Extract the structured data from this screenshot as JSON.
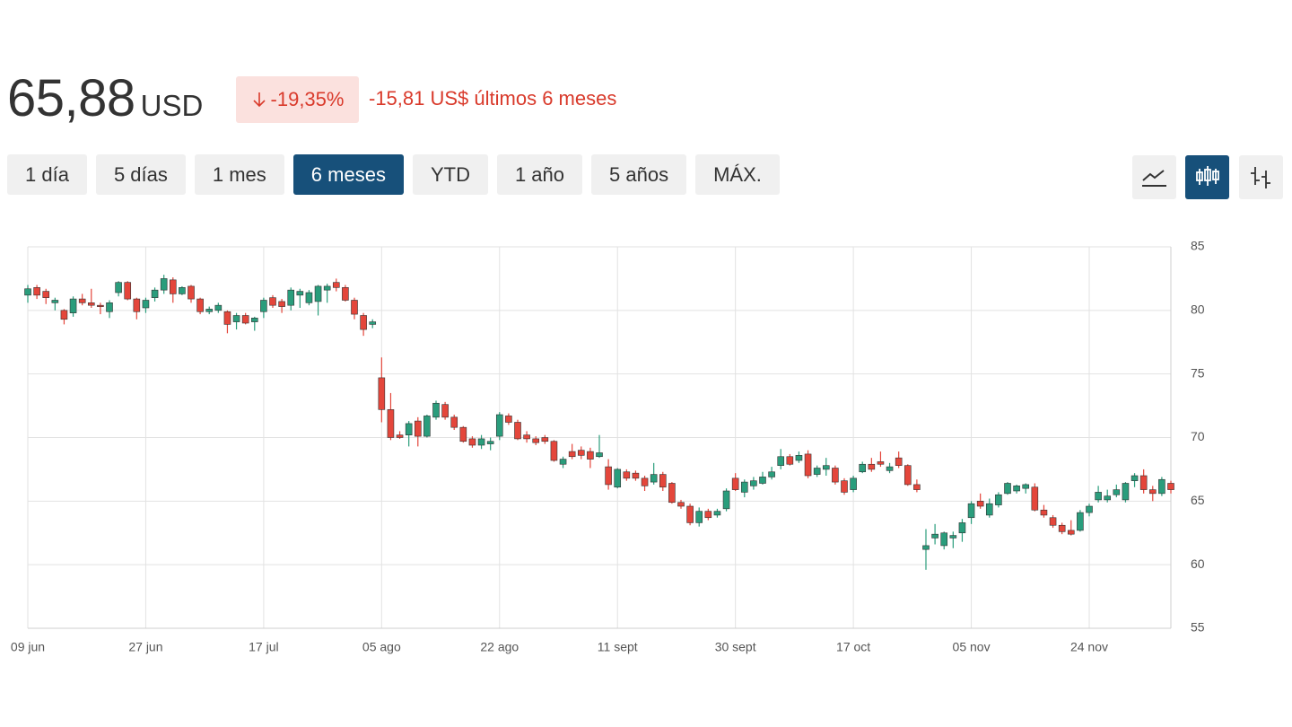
{
  "header": {
    "price": "65,88",
    "currency": "USD",
    "change_pct": "-19,35%",
    "change_text": "-15,81 US$ últimos 6 meses"
  },
  "ranges": [
    {
      "label": "1 día",
      "selected": false
    },
    {
      "label": "5 días",
      "selected": false
    },
    {
      "label": "1 mes",
      "selected": false
    },
    {
      "label": "6 meses",
      "selected": true
    },
    {
      "label": "YTD",
      "selected": false
    },
    {
      "label": "1 año",
      "selected": false
    },
    {
      "label": "5 años",
      "selected": false
    },
    {
      "label": "MÁX.",
      "selected": false
    }
  ],
  "chart_data": {
    "type": "candlestick",
    "categories": [
      "09 jun",
      null,
      null,
      null,
      null,
      null,
      null,
      null,
      null,
      null,
      null,
      null,
      null,
      "27 jun",
      null,
      null,
      null,
      null,
      null,
      null,
      null,
      null,
      null,
      null,
      null,
      null,
      "17 jul",
      null,
      null,
      null,
      null,
      null,
      null,
      null,
      null,
      null,
      null,
      null,
      null,
      "05 ago",
      null,
      null,
      null,
      null,
      null,
      null,
      null,
      null,
      null,
      null,
      null,
      null,
      "22 ago",
      null,
      null,
      null,
      null,
      null,
      null,
      null,
      null,
      null,
      null,
      null,
      null,
      "11 sept",
      null,
      null,
      null,
      null,
      null,
      null,
      null,
      null,
      null,
      null,
      null,
      null,
      "30 sept",
      null,
      null,
      null,
      null,
      null,
      null,
      null,
      null,
      null,
      null,
      null,
      null,
      "17 oct",
      null,
      null,
      null,
      null,
      null,
      null,
      null,
      null,
      null,
      null,
      null,
      null,
      "05 nov",
      null,
      null,
      null,
      null,
      null,
      null,
      null,
      null,
      null,
      null,
      null,
      null,
      "24 nov",
      null,
      null,
      null,
      null,
      null,
      null,
      null,
      null,
      null
    ],
    "open": [
      81.2,
      81.8,
      81.5,
      80.6,
      80,
      79.8,
      80.9,
      80.6,
      80.4,
      79.9,
      81.4,
      82.2,
      80.9,
      80.2,
      81,
      81.6,
      82.4,
      81.3,
      81.9,
      80.9,
      79.9,
      80,
      79.9,
      79.1,
      79.6,
      79.1,
      79.9,
      81,
      80.7,
      80.4,
      81.2,
      80.6,
      80.7,
      81.6,
      82.2,
      81.8,
      80.8,
      79.6,
      78.9,
      74.7,
      72.2,
      70.2,
      70.2,
      71.3,
      70.1,
      71.6,
      72.6,
      71.6,
      70.8,
      69.9,
      69.4,
      69.5,
      70.1,
      71.7,
      71.2,
      70.2,
      69.9,
      70,
      69.7,
      67.9,
      68.9,
      69,
      68.9,
      68.5,
      67.7,
      66.1,
      67.3,
      67.2,
      66.8,
      66.5,
      67.1,
      66.4,
      64.9,
      64.6,
      63.3,
      64.2,
      63.9,
      64.4,
      66.8,
      65.7,
      66.2,
      66.4,
      66.9,
      67.8,
      68.5,
      68.2,
      68.7,
      67.1,
      67.5,
      67.6,
      66.6,
      65.9,
      67.3,
      67.9,
      68.1,
      67.4,
      68.4,
      67.8,
      66.3,
      61.2,
      62.1,
      61.5,
      62.1,
      62.5,
      63.7,
      65,
      63.9,
      64.7,
      65.6,
      65.8,
      66,
      66.1,
      64.3,
      63.7,
      63.1,
      62.7,
      62.7,
      64.1,
      65.1,
      65.1,
      65.5,
      65.1,
      66.6,
      67,
      65.9,
      65.6,
      66.4
    ],
    "high": [
      82,
      82,
      81.7,
      81,
      80.1,
      81.1,
      81.3,
      81.7,
      80.6,
      80.8,
      82.3,
      82.3,
      81,
      81,
      81.8,
      82.8,
      82.6,
      81.9,
      82,
      81,
      80.3,
      80.6,
      80,
      79.8,
      79.8,
      79.5,
      81,
      81.2,
      80.9,
      81.8,
      81.7,
      81.6,
      82,
      82.1,
      82.5,
      82,
      81,
      79.8,
      79.3,
      76.3,
      73.5,
      70.5,
      71.3,
      71.6,
      71.8,
      72.9,
      72.8,
      71.8,
      70.9,
      70.1,
      70.2,
      70,
      72,
      71.9,
      71.4,
      70.5,
      70.1,
      70.2,
      69.8,
      68.5,
      69.5,
      69.3,
      69.2,
      70.2,
      68.3,
      67.6,
      67.5,
      67.4,
      67,
      68,
      67.3,
      66.5,
      65.1,
      64.8,
      64.5,
      64.4,
      64.4,
      66,
      67.2,
      66.7,
      66.9,
      67.3,
      67.7,
      69.1,
      68.7,
      68.9,
      69,
      67.8,
      68.4,
      67.8,
      66.8,
      67,
      68.1,
      68.4,
      68.9,
      68,
      68.9,
      67.9,
      66.7,
      62.8,
      63.2,
      62.6,
      62.6,
      63.6,
      65,
      65.6,
      65.2,
      65.7,
      66.5,
      66.3,
      66.4,
      66.4,
      64.7,
      63.9,
      63.3,
      63.5,
      64.3,
      64.8,
      66.2,
      65.9,
      66.3,
      66.5,
      67.2,
      67.5,
      66.2,
      66.9,
      66.6
    ],
    "low": [
      80.6,
      80.9,
      80.5,
      80,
      78.9,
      79.5,
      80.4,
      80.2,
      79.7,
      79.4,
      81.1,
      80.8,
      79.3,
      79.8,
      80.7,
      81.3,
      80.6,
      81.2,
      80.6,
      79.7,
      79.7,
      79.8,
      78.2,
      78.5,
      78.9,
      78.4,
      79.4,
      80.2,
      79.8,
      80,
      80.2,
      80.4,
      79.6,
      80.6,
      81.5,
      80.7,
      79.3,
      78,
      78.6,
      71.2,
      69.8,
      69.9,
      69.3,
      69.3,
      70,
      71.4,
      71.4,
      70.6,
      69.6,
      69.2,
      69.1,
      69,
      69.8,
      71,
      69.8,
      69.6,
      69.4,
      69.5,
      68.1,
      67.6,
      68.3,
      68.3,
      67.6,
      68.4,
      65.9,
      66,
      66.6,
      66.6,
      65.8,
      66.3,
      65.8,
      64.8,
      64.4,
      63.1,
      63,
      63.5,
      63.7,
      64.2,
      65.8,
      65.3,
      65.9,
      66.3,
      66.7,
      67.5,
      67.8,
      68,
      66.8,
      66.9,
      67,
      66.3,
      65.5,
      65.7,
      67.2,
      67.3,
      67.7,
      67.2,
      67.6,
      66.2,
      65.7,
      59.6,
      61.6,
      61.2,
      61.3,
      61.8,
      63.2,
      64.4,
      63.7,
      64.5,
      65.5,
      65.6,
      65.6,
      64.2,
      63.7,
      62.9,
      62.4,
      62.3,
      62.6,
      63.8,
      64.9,
      64.9,
      65.3,
      64.9,
      66.1,
      65.6,
      65,
      65.4,
      65.6
    ],
    "close": [
      81.7,
      81.2,
      81,
      80.8,
      79.3,
      80.9,
      80.6,
      80.4,
      80.3,
      80.6,
      82.2,
      80.9,
      79.9,
      80.8,
      81.6,
      82.5,
      81.3,
      81.8,
      80.9,
      79.9,
      80.1,
      80.4,
      78.9,
      79.6,
      79,
      79.4,
      80.8,
      80.4,
      80.3,
      81.6,
      81.5,
      81.4,
      81.9,
      81.9,
      81.8,
      80.8,
      79.7,
      78.5,
      79.1,
      72.2,
      70,
      70,
      71.1,
      70.1,
      71.7,
      72.7,
      71.6,
      70.8,
      69.7,
      69.4,
      69.9,
      69.7,
      71.8,
      71.2,
      69.9,
      69.9,
      69.6,
      69.7,
      68.2,
      68.3,
      68.5,
      68.6,
      68.3,
      68.8,
      66.3,
      67.5,
      66.8,
      66.8,
      66.2,
      67.1,
      66.1,
      64.9,
      64.6,
      63.3,
      64.2,
      63.7,
      64.2,
      65.8,
      65.9,
      66.5,
      66.6,
      66.9,
      67.3,
      68.5,
      67.9,
      68.6,
      67,
      67.6,
      67.8,
      66.5,
      65.7,
      66.8,
      67.9,
      67.5,
      67.9,
      67.7,
      67.8,
      66.3,
      65.9,
      61.5,
      62.4,
      62.5,
      62.3,
      63.3,
      64.8,
      64.6,
      64.8,
      65.5,
      66.4,
      66.2,
      66.3,
      64.3,
      63.9,
      63.1,
      62.6,
      62.4,
      64.1,
      64.6,
      65.7,
      65.4,
      65.9,
      66.4,
      67,
      65.9,
      65.6,
      66.7,
      65.9
    ],
    "up_color": "#2a9d7c",
    "down_color": "#e4463b",
    "ylim": [
      55,
      85
    ],
    "yticks": [
      55,
      60,
      65,
      70,
      75,
      80,
      85
    ],
    "y_axis_side": "right",
    "grid": true
  }
}
